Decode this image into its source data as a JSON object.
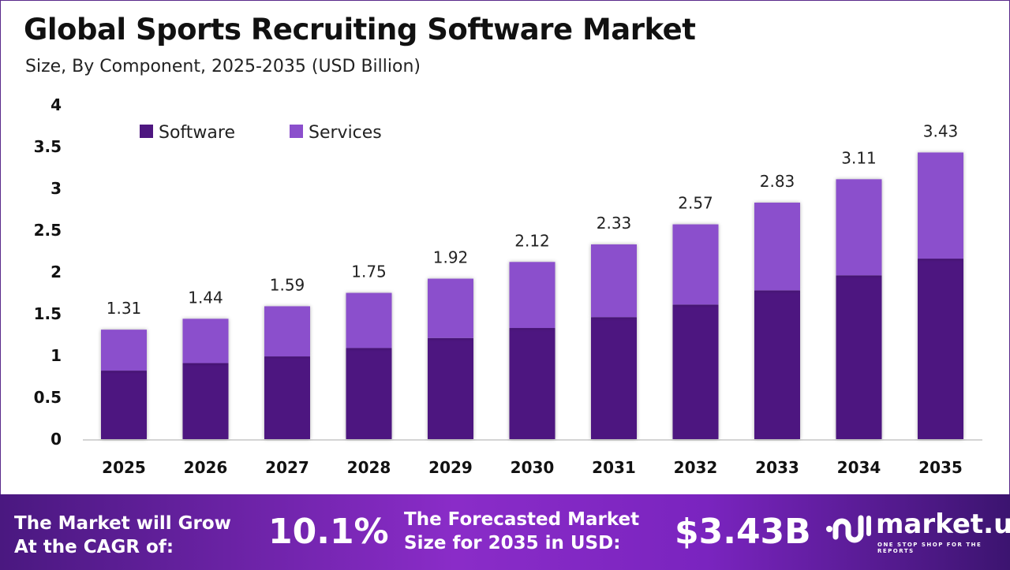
{
  "title": "Global Sports Recruiting Software Market",
  "subtitle": "Size, By Component, 2025-2035 (USD Billion)",
  "chart_data": {
    "type": "bar",
    "stacked": true,
    "categories": [
      "2025",
      "2026",
      "2027",
      "2028",
      "2029",
      "2030",
      "2031",
      "2032",
      "2033",
      "2034",
      "2035"
    ],
    "series": [
      {
        "name": "Software",
        "color": "#4E1780",
        "values": [
          0.82,
          0.91,
          0.99,
          1.09,
          1.21,
          1.33,
          1.46,
          1.61,
          1.78,
          1.96,
          2.16
        ]
      },
      {
        "name": "Services",
        "color": "#8B4FCC",
        "values": [
          0.49,
          0.53,
          0.6,
          0.66,
          0.71,
          0.79,
          0.87,
          0.96,
          1.05,
          1.15,
          1.27
        ]
      }
    ],
    "totals": [
      "1.31",
      "1.44",
      "1.59",
      "1.75",
      "1.92",
      "2.12",
      "2.33",
      "2.57",
      "2.83",
      "3.11",
      "3.43"
    ],
    "yticks": [
      "0",
      "0.5",
      "1",
      "1.5",
      "2",
      "2.5",
      "3",
      "3.5",
      "4"
    ],
    "ylim": [
      0,
      4
    ],
    "grid": false,
    "legend": "top-left"
  },
  "footer": {
    "cagr_label": [
      "The Market will Grow",
      "At the CAGR of:"
    ],
    "cagr_value": "10.1%",
    "forecast_label": [
      "The Forecasted Market",
      "Size for 2035 in USD:"
    ],
    "forecast_value": "$3.43B",
    "brand_name": "market.us",
    "brand_tagline": "ONE STOP SHOP FOR THE REPORTS"
  }
}
